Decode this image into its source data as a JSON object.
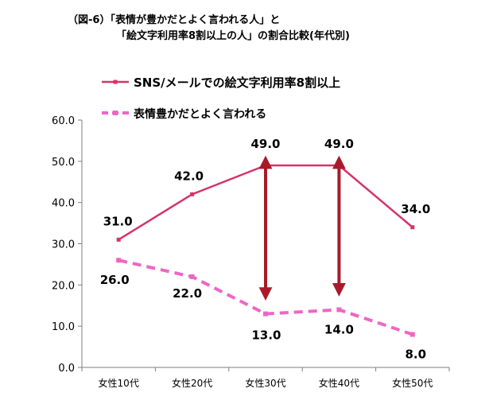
{
  "title_lines": [
    "（図-6）「表情が豊かだとよく言われる人」と",
    "「絵文字利用率8割以上の人」の割合比較(年代別)"
  ],
  "colors": {
    "series1": "#d6336b",
    "series2": "#ee66c4",
    "arrow": "#a81a2a",
    "axis": "#7f7f7f"
  },
  "chart_data": {
    "type": "line",
    "title": "（図-6）「表情が豊かだとよく言われる人」と「絵文字利用率8割以上の人」の割合比較(年代別)",
    "categories": [
      "女性10代",
      "女性20代",
      "女性30代",
      "女性40代",
      "女性50代"
    ],
    "ylim": [
      0,
      60
    ],
    "yticks": [
      "0.0",
      "10.0",
      "20.0",
      "30.0",
      "40.0",
      "50.0",
      "60.0"
    ],
    "grid": false,
    "legend": "top",
    "series": [
      {
        "name": "SNS/メールでの絵文字利用率8割以上",
        "values": [
          31.0,
          42.0,
          49.0,
          49.0,
          34.0
        ],
        "labels": [
          "31.0",
          "42.0",
          "49.0",
          "49.0",
          "34.0"
        ],
        "style": "solid"
      },
      {
        "name": "表情豊かだとよく言われる",
        "values": [
          26.0,
          22.0,
          13.0,
          14.0,
          8.0
        ],
        "labels": [
          "26.0",
          "22.0",
          "13.0",
          "14.0",
          "8.0"
        ],
        "style": "dashed"
      }
    ],
    "annotations": [
      {
        "type": "double-arrow",
        "category": "女性30代",
        "from": 13.0,
        "to": 49.0
      },
      {
        "type": "double-arrow",
        "category": "女性40代",
        "from": 14.0,
        "to": 49.0
      }
    ]
  }
}
